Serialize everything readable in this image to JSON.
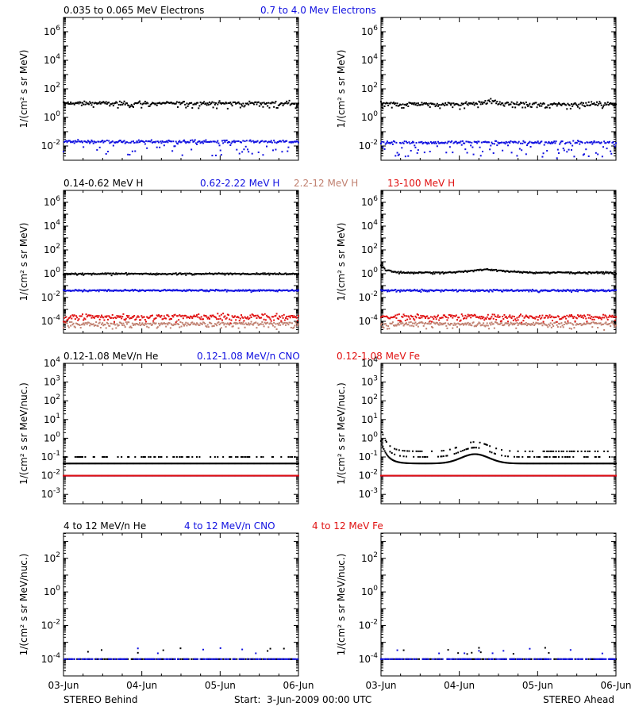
{
  "colors": {
    "black": "#000000",
    "blue": "#1010e0",
    "salmon": "#c08070",
    "red": "#e01010"
  },
  "footer": {
    "left_label": "STEREO Behind",
    "center_label": "Start:  3-Jun-2009 00:00 UTC",
    "right_label": "STEREO Ahead"
  },
  "x_ticks": [
    "03-Jun",
    "04-Jun",
    "05-Jun",
    "06-Jun"
  ],
  "chart_data": [
    {
      "type": "scatter",
      "row": 1,
      "legend": [
        {
          "name": "0.035 to 0.065 MeV Electrons",
          "color": "black"
        },
        {
          "name": "0.7 to 4.0 Mev Electrons",
          "color": "blue"
        }
      ],
      "ylabel": "1/(cm² s sr MeV)",
      "yscale": "log",
      "ylim_exp": [
        -3,
        7
      ],
      "ytick_exps": [
        -2,
        0,
        2,
        4,
        6
      ],
      "xlim_days": [
        0,
        3
      ],
      "panels": [
        {
          "spacecraft": "STEREO Behind",
          "series": [
            {
              "color": "black",
              "base_exp": 1.0,
              "jitter": 0.12,
              "scatter": 0.15
            },
            {
              "color": "blue",
              "base_exp": -1.7,
              "jitter": 0.1,
              "scatter": 0.5
            }
          ]
        },
        {
          "spacecraft": "STEREO Ahead",
          "series": [
            {
              "color": "black",
              "base_exp": 0.95,
              "jitter": 0.12,
              "scatter": 0.15,
              "bump": {
                "day": 1.4,
                "amp": 0.25,
                "width": 0.1
              }
            },
            {
              "color": "blue",
              "base_exp": -1.75,
              "jitter": 0.1,
              "scatter": 0.5
            }
          ]
        }
      ]
    },
    {
      "type": "scatter",
      "row": 2,
      "legend": [
        {
          "name": "0.14-0.62 MeV H",
          "color": "black"
        },
        {
          "name": "0.62-2.22 MeV H",
          "color": "blue"
        },
        {
          "name": "2.2-12 MeV H",
          "color": "salmon"
        },
        {
          "name": "13-100 MeV H",
          "color": "red"
        }
      ],
      "ylabel": "1/(cm² s sr MeV)",
      "yscale": "log",
      "ylim_exp": [
        -5,
        7
      ],
      "ytick_exps": [
        -4,
        -2,
        0,
        2,
        4,
        6
      ],
      "xlim_days": [
        0,
        3
      ],
      "panels": [
        {
          "spacecraft": "STEREO Behind",
          "series": [
            {
              "color": "black",
              "base_exp": 0.0,
              "jitter": 0.05,
              "scatter": 0.05
            },
            {
              "color": "blue",
              "base_exp": -1.4,
              "jitter": 0.06,
              "scatter": 0.05
            },
            {
              "color": "salmon",
              "base_exp": -4.2,
              "jitter": 0.15,
              "scatter": 0.2
            },
            {
              "color": "red",
              "base_exp": -3.6,
              "jitter": 0.2,
              "scatter": 0.2
            }
          ]
        },
        {
          "spacecraft": "STEREO Ahead",
          "series": [
            {
              "color": "black",
              "base_exp": 0.1,
              "jitter": 0.05,
              "scatter": 0.05,
              "start_spike": 0.6,
              "bump": {
                "day": 1.35,
                "amp": 0.25,
                "width": 0.3
              }
            },
            {
              "color": "blue",
              "base_exp": -1.4,
              "jitter": 0.06,
              "scatter": 0.05
            },
            {
              "color": "salmon",
              "base_exp": -4.2,
              "jitter": 0.15,
              "scatter": 0.2
            },
            {
              "color": "red",
              "base_exp": -3.6,
              "jitter": 0.2,
              "scatter": 0.2
            }
          ]
        }
      ]
    },
    {
      "type": "scatter",
      "row": 3,
      "legend": [
        {
          "name": "0.12-1.08 MeV/n He",
          "color": "black"
        },
        {
          "name": "0.12-1.08 MeV/n CNO",
          "color": "blue"
        },
        {
          "name": "0.12-1.08 MeV Fe",
          "color": "red"
        }
      ],
      "ylabel": "1/(cm² s sr MeV/nuc.)",
      "yscale": "log",
      "ylim_exp": [
        -3.5,
        4
      ],
      "ytick_exps": [
        -3,
        -2,
        -1,
        0,
        1,
        2,
        3,
        4
      ],
      "xlim_days": [
        0,
        3
      ],
      "panels": [
        {
          "spacecraft": "STEREO Behind",
          "series": [
            {
              "color": "black",
              "base_exp": -1.35,
              "jitter": 0.0,
              "scatter": 0.0,
              "levels": [
                -1.35,
                -1.0
              ]
            },
            {
              "color": "blue",
              "base_exp": -2.0,
              "jitter": 0.0,
              "scatter": 0.0
            },
            {
              "color": "red",
              "base_exp": -2.0,
              "jitter": 0.0,
              "scatter": 0.0
            }
          ]
        },
        {
          "spacecraft": "STEREO Ahead",
          "series": [
            {
              "color": "black",
              "base_exp": -1.35,
              "jitter": 0.0,
              "scatter": 0.0,
              "levels": [
                -1.35,
                -1.0,
                -0.7
              ],
              "start_spike": 1.2,
              "bump": {
                "day": 1.2,
                "amp": 0.5,
                "width": 0.25
              }
            },
            {
              "color": "blue",
              "base_exp": -2.0,
              "jitter": 0.0,
              "scatter": 0.0
            },
            {
              "color": "red",
              "base_exp": -2.0,
              "jitter": 0.0,
              "scatter": 0.0
            }
          ]
        }
      ]
    },
    {
      "type": "scatter",
      "row": 4,
      "legend": [
        {
          "name": "4 to 12 MeV/n He",
          "color": "black"
        },
        {
          "name": "4 to 12 MeV/n CNO",
          "color": "blue"
        },
        {
          "name": "4 to 12 MeV Fe",
          "color": "red"
        }
      ],
      "ylabel": "1/(cm² s sr MeV/nuc.)",
      "yscale": "log",
      "ylim_exp": [
        -5,
        3.5
      ],
      "ytick_exps": [
        -4,
        -2,
        0,
        2
      ],
      "xlim_days": [
        0,
        3
      ],
      "panels": [
        {
          "spacecraft": "STEREO Behind",
          "series": [
            {
              "color": "black",
              "base_exp": -4.0,
              "jitter": 0.0,
              "scatter": 0.0,
              "sparse": true
            },
            {
              "color": "blue",
              "base_exp": -4.0,
              "jitter": 0.0,
              "scatter": 0.0,
              "sparse": true
            }
          ]
        },
        {
          "spacecraft": "STEREO Ahead",
          "series": [
            {
              "color": "black",
              "base_exp": -4.0,
              "jitter": 0.0,
              "scatter": 0.0,
              "sparse": true
            },
            {
              "color": "blue",
              "base_exp": -4.0,
              "jitter": 0.0,
              "scatter": 0.0,
              "sparse": true
            }
          ]
        }
      ]
    }
  ]
}
